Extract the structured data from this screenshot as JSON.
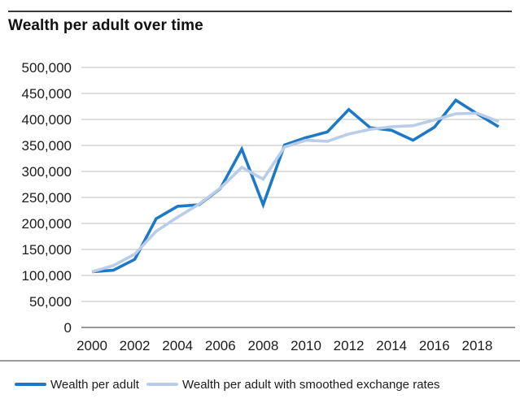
{
  "title": "Wealth per adult over time",
  "chart_data": {
    "type": "line",
    "title": "Wealth per adult over time",
    "xlabel": "",
    "ylabel": "",
    "x": [
      2000,
      2001,
      2002,
      2003,
      2004,
      2005,
      2006,
      2007,
      2008,
      2009,
      2010,
      2011,
      2012,
      2013,
      2014,
      2015,
      2016,
      2017,
      2018,
      2019
    ],
    "series": [
      {
        "name": "Wealth per adult",
        "color": "#1d79c6",
        "values": [
          107000,
          110000,
          131000,
          209000,
          233000,
          236000,
          267000,
          343000,
          236000,
          351000,
          365000,
          376000,
          419000,
          384000,
          379000,
          360000,
          385000,
          437000,
          411000,
          386000
        ]
      },
      {
        "name": "Wealth per adult with smoothed exchange rates",
        "color": "#b9cde8",
        "values": [
          107000,
          119000,
          141000,
          185000,
          212000,
          237000,
          268000,
          308000,
          285000,
          347000,
          360000,
          358000,
          372000,
          381000,
          386000,
          388000,
          399000,
          411000,
          412000,
          396000
        ]
      }
    ],
    "ylim": [
      0,
      500000
    ],
    "y_tick_step": 50000,
    "y_tick_labels": [
      "0",
      "50,000",
      "100,000",
      "150,000",
      "200,000",
      "250,000",
      "300,000",
      "350,000",
      "400,000",
      "450,000",
      "500,000"
    ],
    "x_tick_labels": [
      "2000",
      "2002",
      "2004",
      "2006",
      "2008",
      "2010",
      "2012",
      "2014",
      "2016",
      "2018"
    ],
    "grid": true,
    "legend_position": "bottom"
  },
  "colors": {
    "grid_line": "#c9c9c9",
    "zero_line": "#989898",
    "top_rule": "#3a3a3a",
    "legend_divider": "#9b9b9b",
    "text": "#1c1c1c"
  }
}
